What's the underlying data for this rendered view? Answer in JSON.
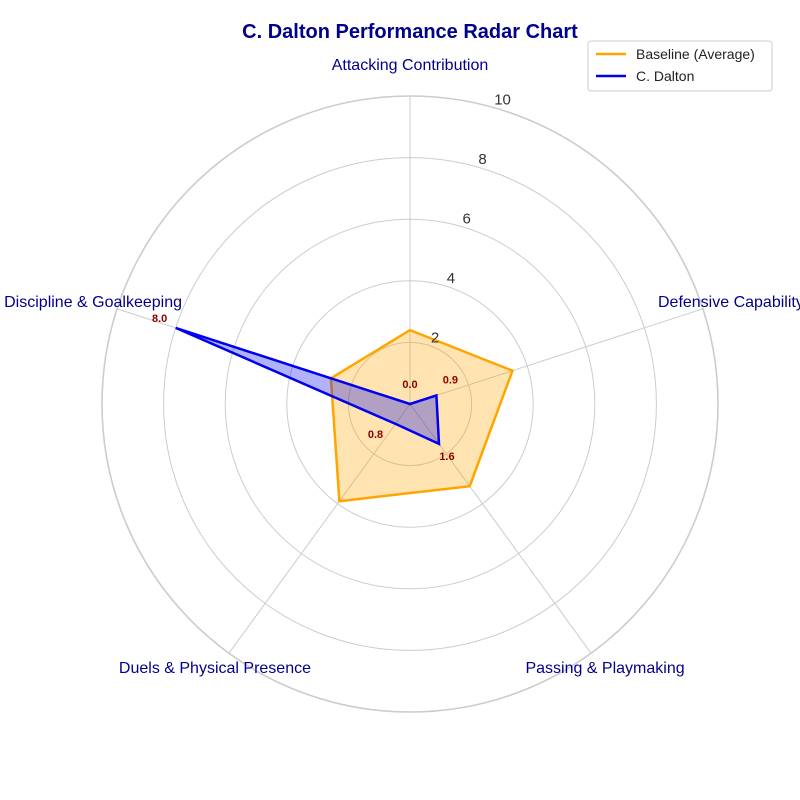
{
  "chart_data": {
    "type": "radar",
    "title": "C. Dalton Performance Radar Chart",
    "categories": [
      "Attacking Contribution",
      "Defensive Capability",
      "Passing & Playmaking",
      "Duels & Physical Presence",
      "Discipline & Goalkeeping"
    ],
    "rlim": [
      0,
      10
    ],
    "rticks": [
      2,
      4,
      6,
      8,
      10
    ],
    "grid": true,
    "legend_position": "top-right",
    "series": [
      {
        "name": "Baseline (Average)",
        "values": [
          2.4,
          3.5,
          3.3,
          3.9,
          2.7
        ],
        "color": "#FFA500",
        "fill": "#FFA500",
        "show_labels": false
      },
      {
        "name": "C. Dalton",
        "values": [
          0.0,
          0.9,
          1.6,
          0.8,
          8.0
        ],
        "color": "#0000EE",
        "fill": "#0000EE",
        "show_labels": true
      }
    ],
    "value_labels": [
      "0.0",
      "0.9",
      "1.6",
      "0.8",
      "8.0"
    ],
    "colors": {
      "title": "#00008B",
      "axis_label": "#00008B",
      "data_label": "#8B0000",
      "grid": "#CCCCCC"
    }
  }
}
